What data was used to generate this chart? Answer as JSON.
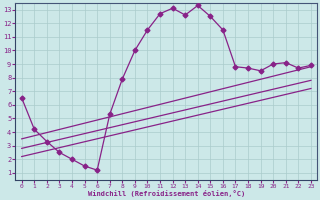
{
  "xlabel": "Windchill (Refroidissement éolien,°C)",
  "ylabel": "",
  "background_color": "#cce8e8",
  "grid_color": "#aacccc",
  "line_color": "#882288",
  "xlim": [
    -0.5,
    23.5
  ],
  "ylim": [
    0.5,
    13.5
  ],
  "xticks": [
    0,
    1,
    2,
    3,
    4,
    5,
    6,
    7,
    8,
    9,
    10,
    11,
    12,
    13,
    14,
    15,
    16,
    17,
    18,
    19,
    20,
    21,
    22,
    23
  ],
  "yticks": [
    1,
    2,
    3,
    4,
    5,
    6,
    7,
    8,
    9,
    10,
    11,
    12,
    13
  ],
  "curve_x": [
    0,
    1,
    2,
    3,
    4,
    5,
    6,
    7,
    8,
    9,
    10,
    11,
    12,
    13,
    14,
    15,
    16,
    17,
    18,
    19,
    20,
    21,
    22,
    23
  ],
  "curve_y": [
    6.5,
    4.2,
    3.3,
    2.5,
    2.0,
    1.5,
    1.2,
    5.3,
    7.9,
    10.0,
    11.5,
    12.7,
    13.1,
    12.6,
    13.3,
    12.5,
    11.5,
    8.8,
    8.7,
    8.5,
    9.0,
    9.1,
    8.7,
    8.9
  ],
  "line1_x": [
    0,
    23
  ],
  "line1_y": [
    3.5,
    8.8
  ],
  "line2_x": [
    0,
    23
  ],
  "line2_y": [
    2.8,
    7.8
  ],
  "line3_x": [
    0,
    23
  ],
  "line3_y": [
    2.2,
    7.2
  ],
  "marker_size": 2.5,
  "linewidth": 0.9
}
